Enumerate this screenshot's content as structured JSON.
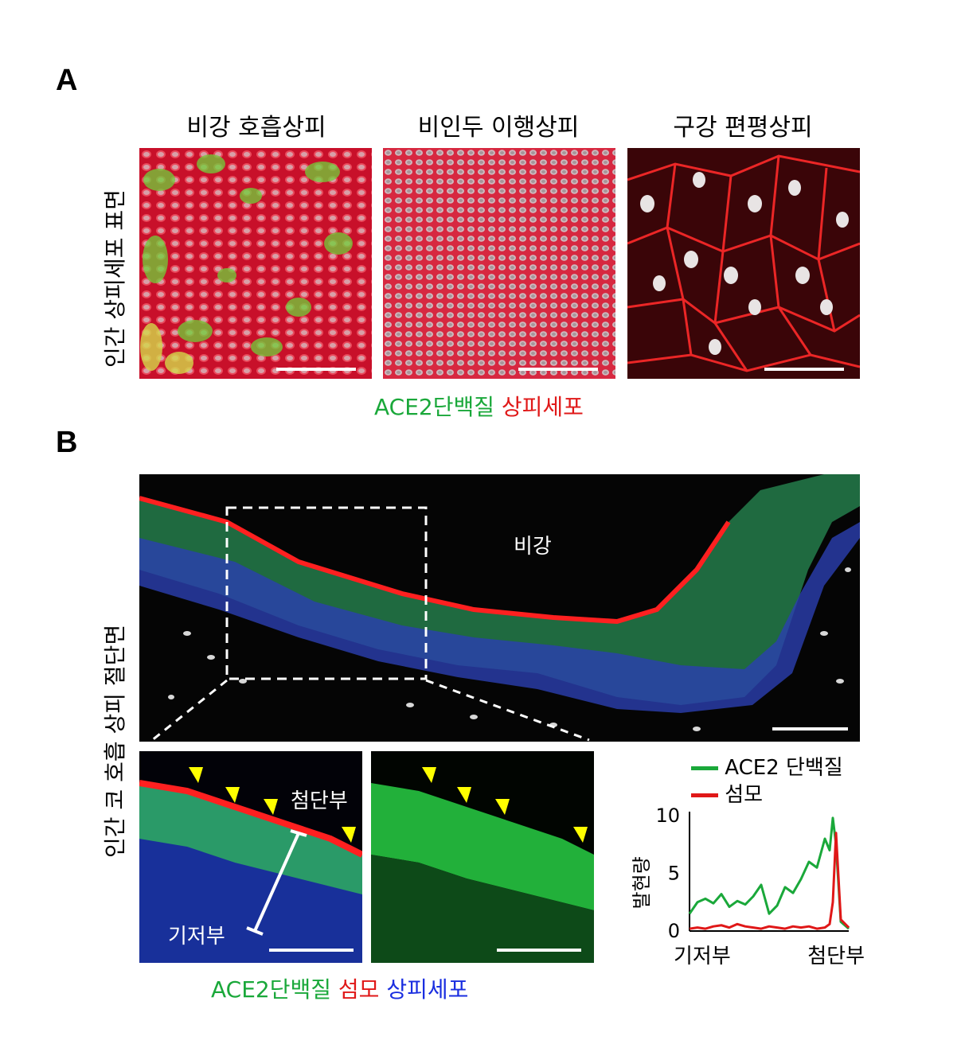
{
  "panels": {
    "a_letter": "A",
    "b_letter": "B"
  },
  "panel_a": {
    "row_label": "인간 상피세포 표면",
    "columns": [
      {
        "title": "비강 호흡상피"
      },
      {
        "title": "비인두 이행상피"
      },
      {
        "title": "구강 편평상피"
      }
    ],
    "legend": {
      "ace2": "ACE2단백질",
      "epithelial": "상피세포"
    },
    "colors": {
      "ace2": "#1aa83a",
      "epithelial": "#e01818"
    }
  },
  "panel_b": {
    "row_label": "인간 코 호흡 상피 절단면",
    "cavity_label": "비강",
    "apical_label": "첨단부",
    "basal_label": "기저부",
    "legend": {
      "ace2": "ACE2단백질",
      "cilia": "섬모",
      "epithelial": "상피세포"
    },
    "colors": {
      "ace2": "#1aa83a",
      "cilia": "#e01818",
      "epithelial": "#1a2ee0"
    }
  },
  "chart_data": {
    "type": "line",
    "ylabel": "발현량",
    "xlabel_left": "기저부",
    "xlabel_right": "첨단부",
    "ylim": [
      0,
      10
    ],
    "yticks": [
      "0",
      "5",
      "10"
    ],
    "x": [
      0,
      0.05,
      0.1,
      0.15,
      0.2,
      0.25,
      0.3,
      0.35,
      0.4,
      0.45,
      0.5,
      0.55,
      0.6,
      0.65,
      0.7,
      0.75,
      0.8,
      0.85,
      0.88,
      0.9,
      0.92,
      0.95,
      1.0
    ],
    "series": [
      {
        "name": "ACE2 단백질",
        "color": "#1aa83a",
        "values": [
          1.5,
          2.5,
          2.8,
          2.4,
          3.2,
          2.1,
          2.6,
          2.3,
          3.0,
          4.0,
          1.5,
          2.2,
          3.8,
          3.3,
          4.5,
          6.0,
          5.5,
          8.0,
          7.0,
          9.8,
          7.5,
          0.8,
          0.2
        ]
      },
      {
        "name": "섬모",
        "color": "#e01818",
        "values": [
          0.2,
          0.3,
          0.2,
          0.4,
          0.5,
          0.3,
          0.6,
          0.4,
          0.3,
          0.2,
          0.4,
          0.3,
          0.2,
          0.4,
          0.3,
          0.4,
          0.2,
          0.3,
          0.6,
          2.5,
          8.5,
          1.0,
          0.3
        ]
      }
    ]
  }
}
